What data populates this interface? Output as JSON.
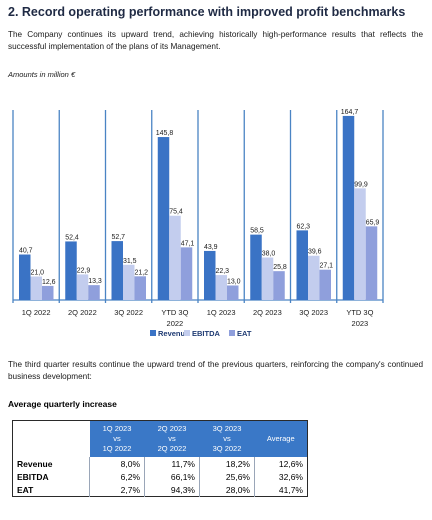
{
  "heading": "2.  Record operating performance with improved profit benchmarks",
  "intro": "The Company continues its upward trend, achieving historically high-performance results that reflects the successful implementation of the plans of its Management.",
  "amounts_note": "Amounts in million €",
  "colors": {
    "revenue": "#3a73c5",
    "ebitda": "#c3cdee",
    "eat": "#8f9fdc",
    "grid": "#4a84c4",
    "header": "#3a78c7"
  },
  "chart_data": {
    "type": "bar",
    "categories": [
      "1Q 2022",
      "2Q 2022",
      "3Q 2022",
      "YTD 3Q 2022",
      "1Q 2023",
      "2Q 2023",
      "3Q 2023",
      "YTD 3Q 2023"
    ],
    "category_lines": [
      [
        "1Q 2022"
      ],
      [
        "2Q 2022"
      ],
      [
        "3Q 2022"
      ],
      [
        "YTD 3Q",
        "2022"
      ],
      [
        "1Q 2023"
      ],
      [
        "2Q 2023"
      ],
      [
        "3Q 2023"
      ],
      [
        "YTD 3Q",
        "2023"
      ]
    ],
    "series": [
      {
        "name": "Revenue",
        "values": [
          40.7,
          52.4,
          52.7,
          145.8,
          43.9,
          58.5,
          62.3,
          164.7
        ],
        "labels": [
          "40,7",
          "52,4",
          "52,7",
          "145,8",
          "43,9",
          "58,5",
          "62,3",
          "164,7"
        ]
      },
      {
        "name": "EBITDA",
        "values": [
          21.0,
          22.9,
          31.5,
          75.4,
          22.3,
          38.0,
          39.6,
          99.9
        ],
        "labels": [
          "21,0",
          "22,9",
          "31,5",
          "75,4",
          "22,3",
          "38,0",
          "39,6",
          "99,9"
        ]
      },
      {
        "name": "EAT",
        "values": [
          12.6,
          13.3,
          21.2,
          47.1,
          13.0,
          25.8,
          27.1,
          65.9
        ],
        "labels": [
          "12,6",
          "13,3",
          "21,2",
          "47,1",
          "13,0",
          "25,8",
          "27,1",
          "65,9"
        ]
      }
    ],
    "ylim": [
      0,
      170
    ],
    "grid": "vertical separators",
    "legend": "bottom-center"
  },
  "closing": "The third quarter results continue the upward trend of the previous quarters, reinforcing the company's continued business development:",
  "table_title": "Average quarterly increase",
  "table": {
    "headers": [
      [
        "1Q 2023",
        "vs",
        "1Q 2022"
      ],
      [
        "2Q 2023",
        "vs",
        "2Q 2022"
      ],
      [
        "3Q 2023",
        "vs",
        "3Q 2022"
      ],
      [
        "Average"
      ]
    ],
    "rows": [
      {
        "label": "Revenue",
        "values": [
          "8,0%",
          "11,7%",
          "18,2%",
          "12,6%"
        ]
      },
      {
        "label": "EBITDA",
        "values": [
          "6,2%",
          "66,1%",
          "25,6%",
          "32,6%"
        ]
      },
      {
        "label": "EAT",
        "values": [
          "2,7%",
          "94,3%",
          "28,0%",
          "41,7%"
        ]
      }
    ]
  }
}
